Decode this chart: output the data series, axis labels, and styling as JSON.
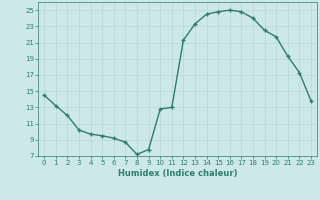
{
  "x": [
    0,
    1,
    2,
    3,
    4,
    5,
    6,
    7,
    8,
    9,
    10,
    11,
    12,
    13,
    14,
    15,
    16,
    17,
    18,
    19,
    20,
    21,
    22,
    23
  ],
  "y": [
    14.5,
    13.2,
    12.0,
    10.2,
    9.7,
    9.5,
    9.2,
    8.7,
    7.2,
    7.8,
    12.8,
    13.0,
    21.3,
    23.3,
    24.5,
    24.8,
    25.0,
    24.8,
    24.0,
    22.5,
    21.7,
    19.3,
    17.3,
    13.8
  ],
  "line_color": "#2e7d6e",
  "marker": "+",
  "bg_color": "#cce8e8",
  "grid_color": "#b8d8d8",
  "xlabel": "Humidex (Indice chaleur)",
  "ylim": [
    7,
    26
  ],
  "xlim": [
    -0.5,
    23.5
  ],
  "yticks": [
    7,
    9,
    11,
    13,
    15,
    17,
    19,
    21,
    23,
    25
  ],
  "xticks": [
    0,
    1,
    2,
    3,
    4,
    5,
    6,
    7,
    8,
    9,
    10,
    11,
    12,
    13,
    14,
    15,
    16,
    17,
    18,
    19,
    20,
    21,
    22,
    23
  ],
  "tick_color": "#2e7d6e",
  "font_color": "#2e7d6e",
  "linewidth": 1.0,
  "markersize": 3.5,
  "markeredgewidth": 1.0,
  "tick_fontsize": 5.0,
  "xlabel_fontsize": 6.0
}
